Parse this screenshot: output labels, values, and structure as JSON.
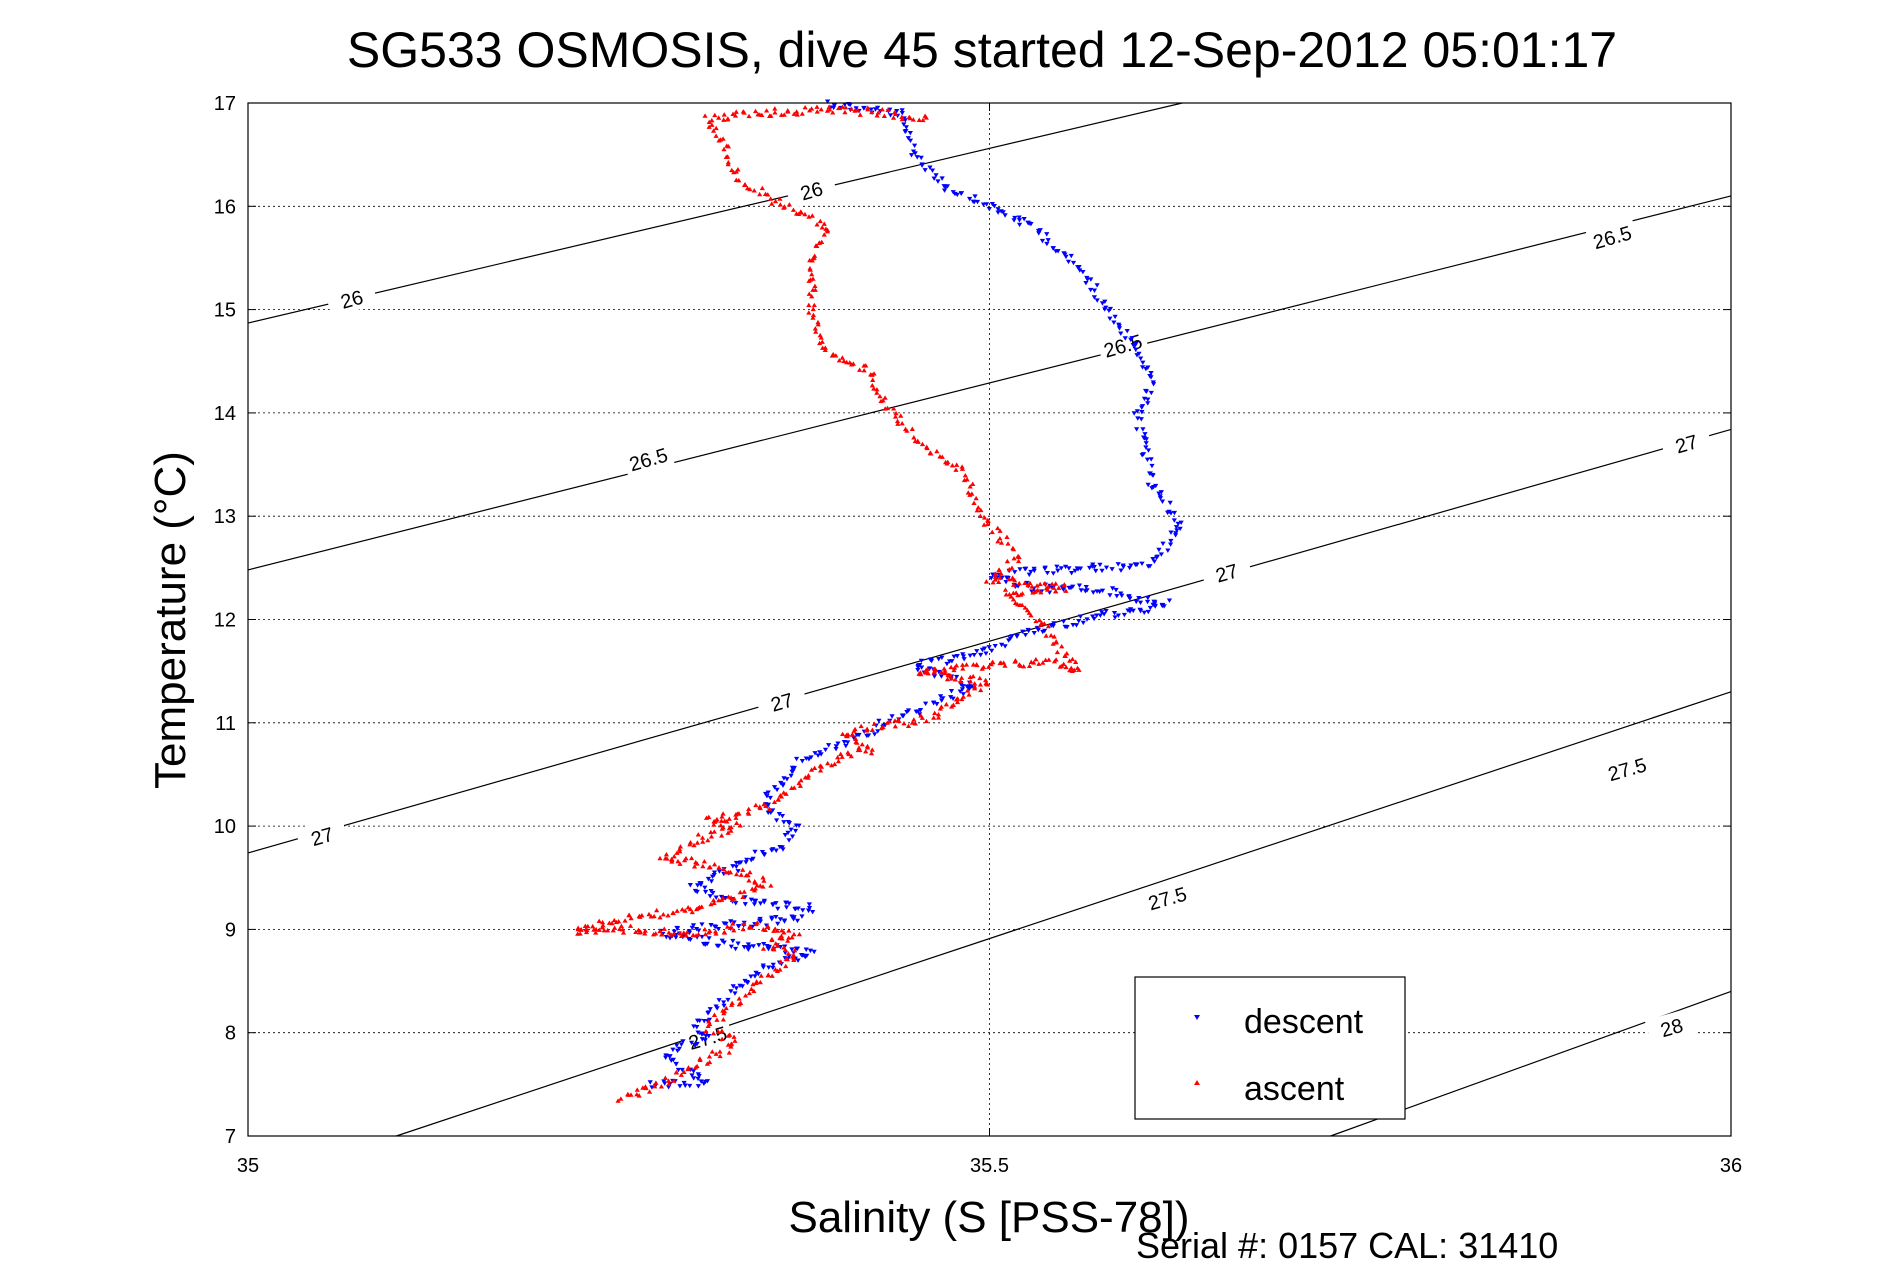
{
  "chart_data": {
    "type": "scatter",
    "title": "SG533 OSMOSIS, dive 45 started 12-Sep-2012 05:01:17",
    "xlabel": "Salinity (S [PSS-78])",
    "ylabel": "Temperature (°C)",
    "xlim": [
      35,
      36
    ],
    "ylim": [
      7,
      17
    ],
    "xticks": [
      "35",
      "35.5",
      "36"
    ],
    "yticks": [
      "7",
      "8",
      "9",
      "10",
      "11",
      "12",
      "13",
      "14",
      "15",
      "16",
      "17"
    ],
    "grid": true,
    "legend_position": "bottom-right",
    "footer": "Serial #: 0157  CAL: 31410",
    "contours": [
      {
        "label": "26",
        "points": [
          [
            35.0,
            14.87
          ],
          [
            35.63,
            17.0
          ]
        ]
      },
      {
        "label": "26.5",
        "points": [
          [
            35.0,
            12.48
          ],
          [
            36.0,
            16.1
          ]
        ]
      },
      {
        "label": "27",
        "points": [
          [
            35.0,
            9.74
          ],
          [
            36.0,
            13.84
          ]
        ]
      },
      {
        "label": "27.5",
        "points": [
          [
            35.1,
            7.0
          ],
          [
            36.0,
            11.3
          ]
        ]
      },
      {
        "label": "28",
        "points": [
          [
            35.73,
            7.0
          ],
          [
            36.0,
            8.4
          ]
        ]
      }
    ],
    "contour_labels": [
      {
        "text": "26",
        "x": 35.07,
        "y": 15.1
      },
      {
        "text": "26",
        "x": 35.38,
        "y": 16.15
      },
      {
        "text": "26.5",
        "x": 35.27,
        "y": 13.55
      },
      {
        "text": "26.5",
        "x": 35.59,
        "y": 14.65
      },
      {
        "text": "26.5",
        "x": 35.92,
        "y": 15.7
      },
      {
        "text": "27",
        "x": 35.05,
        "y": 9.9
      },
      {
        "text": "27",
        "x": 35.36,
        "y": 11.2
      },
      {
        "text": "27",
        "x": 35.66,
        "y": 12.45
      },
      {
        "text": "27",
        "x": 35.97,
        "y": 13.7
      },
      {
        "text": "27.5",
        "x": 35.31,
        "y": 7.95
      },
      {
        "text": "27.5",
        "x": 35.62,
        "y": 9.3
      },
      {
        "text": "27.5",
        "x": 35.93,
        "y": 10.55
      },
      {
        "text": "28",
        "x": 35.96,
        "y": 8.05
      }
    ],
    "series": [
      {
        "name": "descent",
        "marker": "triangle-down",
        "color": "#0000ff",
        "path": [
          [
            35.39,
            17.0
          ],
          [
            35.41,
            16.95
          ],
          [
            35.44,
            16.9
          ],
          [
            35.45,
            16.5
          ],
          [
            35.47,
            16.2
          ],
          [
            35.53,
            15.8
          ],
          [
            35.56,
            15.4
          ],
          [
            35.59,
            14.8
          ],
          [
            35.6,
            14.6
          ],
          [
            35.61,
            14.3
          ],
          [
            35.6,
            13.97
          ],
          [
            35.61,
            13.3
          ],
          [
            35.62,
            13.1
          ],
          [
            35.63,
            12.9
          ],
          [
            35.61,
            12.55
          ],
          [
            35.58,
            12.5
          ],
          [
            35.55,
            12.48
          ],
          [
            35.52,
            12.45
          ],
          [
            35.5,
            12.42
          ],
          [
            35.53,
            12.3
          ],
          [
            35.57,
            12.3
          ],
          [
            35.6,
            12.2
          ],
          [
            35.62,
            12.15
          ],
          [
            35.6,
            12.08
          ],
          [
            35.58,
            12.05
          ],
          [
            35.55,
            11.95
          ],
          [
            35.52,
            11.85
          ],
          [
            35.5,
            11.7
          ],
          [
            35.47,
            11.6
          ],
          [
            35.45,
            11.55
          ],
          [
            35.47,
            11.45
          ],
          [
            35.49,
            11.35
          ],
          [
            35.47,
            11.25
          ],
          [
            35.45,
            11.1
          ],
          [
            35.43,
            11.0
          ],
          [
            35.41,
            10.85
          ],
          [
            35.39,
            10.75
          ],
          [
            35.37,
            10.6
          ],
          [
            35.36,
            10.4
          ],
          [
            35.35,
            10.3
          ],
          [
            35.35,
            10.15
          ],
          [
            35.37,
            10.0
          ],
          [
            35.36,
            9.8
          ],
          [
            35.34,
            9.7
          ],
          [
            35.33,
            9.6
          ],
          [
            35.31,
            9.5
          ],
          [
            35.3,
            9.4
          ],
          [
            35.32,
            9.3
          ],
          [
            35.35,
            9.25
          ],
          [
            35.38,
            9.2
          ],
          [
            35.37,
            9.1
          ],
          [
            35.33,
            9.05
          ],
          [
            35.3,
            9.0
          ],
          [
            35.28,
            8.95
          ],
          [
            35.3,
            8.9
          ],
          [
            35.33,
            8.85
          ],
          [
            35.37,
            8.8
          ],
          [
            35.38,
            8.75
          ],
          [
            35.35,
            8.65
          ],
          [
            35.33,
            8.45
          ],
          [
            35.32,
            8.3
          ],
          [
            35.31,
            8.15
          ],
          [
            35.3,
            8.05
          ],
          [
            35.31,
            7.95
          ],
          [
            35.29,
            7.85
          ],
          [
            35.28,
            7.75
          ],
          [
            35.3,
            7.6
          ],
          [
            35.31,
            7.52
          ],
          [
            35.29,
            7.5
          ],
          [
            35.27,
            7.5
          ]
        ]
      },
      {
        "name": "ascent",
        "marker": "triangle-up",
        "color": "#ff0000",
        "path": [
          [
            35.25,
            7.35
          ],
          [
            35.27,
            7.45
          ],
          [
            35.29,
            7.6
          ],
          [
            35.31,
            7.75
          ],
          [
            35.33,
            7.9
          ],
          [
            35.31,
            8.05
          ],
          [
            35.33,
            8.3
          ],
          [
            35.34,
            8.45
          ],
          [
            35.36,
            8.65
          ],
          [
            35.37,
            8.75
          ],
          [
            35.35,
            8.85
          ],
          [
            35.37,
            8.95
          ],
          [
            35.34,
            9.05
          ],
          [
            35.3,
            8.95
          ],
          [
            35.26,
            9.0
          ],
          [
            35.22,
            8.98
          ],
          [
            35.25,
            9.1
          ],
          [
            35.3,
            9.2
          ],
          [
            35.33,
            9.3
          ],
          [
            35.35,
            9.45
          ],
          [
            35.32,
            9.6
          ],
          [
            35.28,
            9.7
          ],
          [
            35.3,
            9.85
          ],
          [
            35.33,
            10.0
          ],
          [
            35.31,
            10.05
          ],
          [
            35.35,
            10.2
          ],
          [
            35.37,
            10.4
          ],
          [
            35.39,
            10.6
          ],
          [
            35.42,
            10.75
          ],
          [
            35.4,
            10.9
          ],
          [
            35.46,
            11.05
          ],
          [
            35.48,
            11.25
          ],
          [
            35.5,
            11.4
          ],
          [
            35.45,
            11.5
          ],
          [
            35.5,
            11.55
          ],
          [
            35.54,
            11.6
          ],
          [
            35.56,
            11.5
          ],
          [
            35.53,
            12.05
          ],
          [
            35.51,
            12.25
          ],
          [
            35.55,
            12.3
          ],
          [
            35.5,
            12.4
          ],
          [
            35.52,
            12.6
          ],
          [
            35.5,
            12.9
          ],
          [
            35.48,
            13.45
          ],
          [
            35.45,
            13.75
          ],
          [
            35.43,
            14.05
          ],
          [
            35.42,
            14.4
          ],
          [
            35.39,
            14.6
          ],
          [
            35.38,
            15.0
          ],
          [
            35.38,
            15.5
          ],
          [
            35.39,
            15.8
          ],
          [
            35.35,
            16.1
          ],
          [
            35.33,
            16.3
          ],
          [
            35.32,
            16.6
          ],
          [
            35.31,
            16.85
          ],
          [
            35.34,
            16.9
          ],
          [
            35.37,
            16.92
          ],
          [
            35.39,
            16.95
          ],
          [
            35.43,
            16.9
          ],
          [
            35.46,
            16.85
          ]
        ]
      }
    ]
  },
  "legend": {
    "descent": "descent",
    "ascent": "ascent"
  },
  "colors": {
    "descent": "#0000ff",
    "ascent": "#ff0000",
    "axes": "#000000",
    "grid": "#000000"
  }
}
